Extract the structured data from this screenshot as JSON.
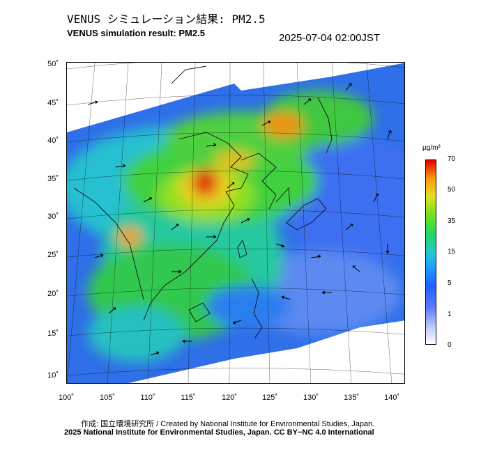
{
  "header": {
    "title_jp": "VENUS シミュレーション結果: PM2.5",
    "title_en": "VENUS simulation result: PM2.5",
    "timestamp": "2025-07-04 02:00JST"
  },
  "map": {
    "lat_labels": [
      "50˚",
      "45˚",
      "40˚",
      "35˚",
      "30˚",
      "25˚",
      "20˚",
      "15˚",
      "10˚"
    ],
    "lon_labels": [
      "100˚",
      "105˚",
      "110˚",
      "115˚",
      "120˚",
      "125˚",
      "130˚",
      "135˚",
      "140˚"
    ]
  },
  "legend": {
    "unit": "µg/m³",
    "ticks": [
      "70",
      "50",
      "35",
      "15",
      "5",
      "1",
      "0"
    ]
  },
  "footer": {
    "credit_line_1": "作成: 国立環境研究所 / Created by National Institute for Environmental Studies, Japan.",
    "credit_line_2": "2025 National Institute for Environmental Studies, Japan. CC BY−NC 4.0 International"
  }
}
